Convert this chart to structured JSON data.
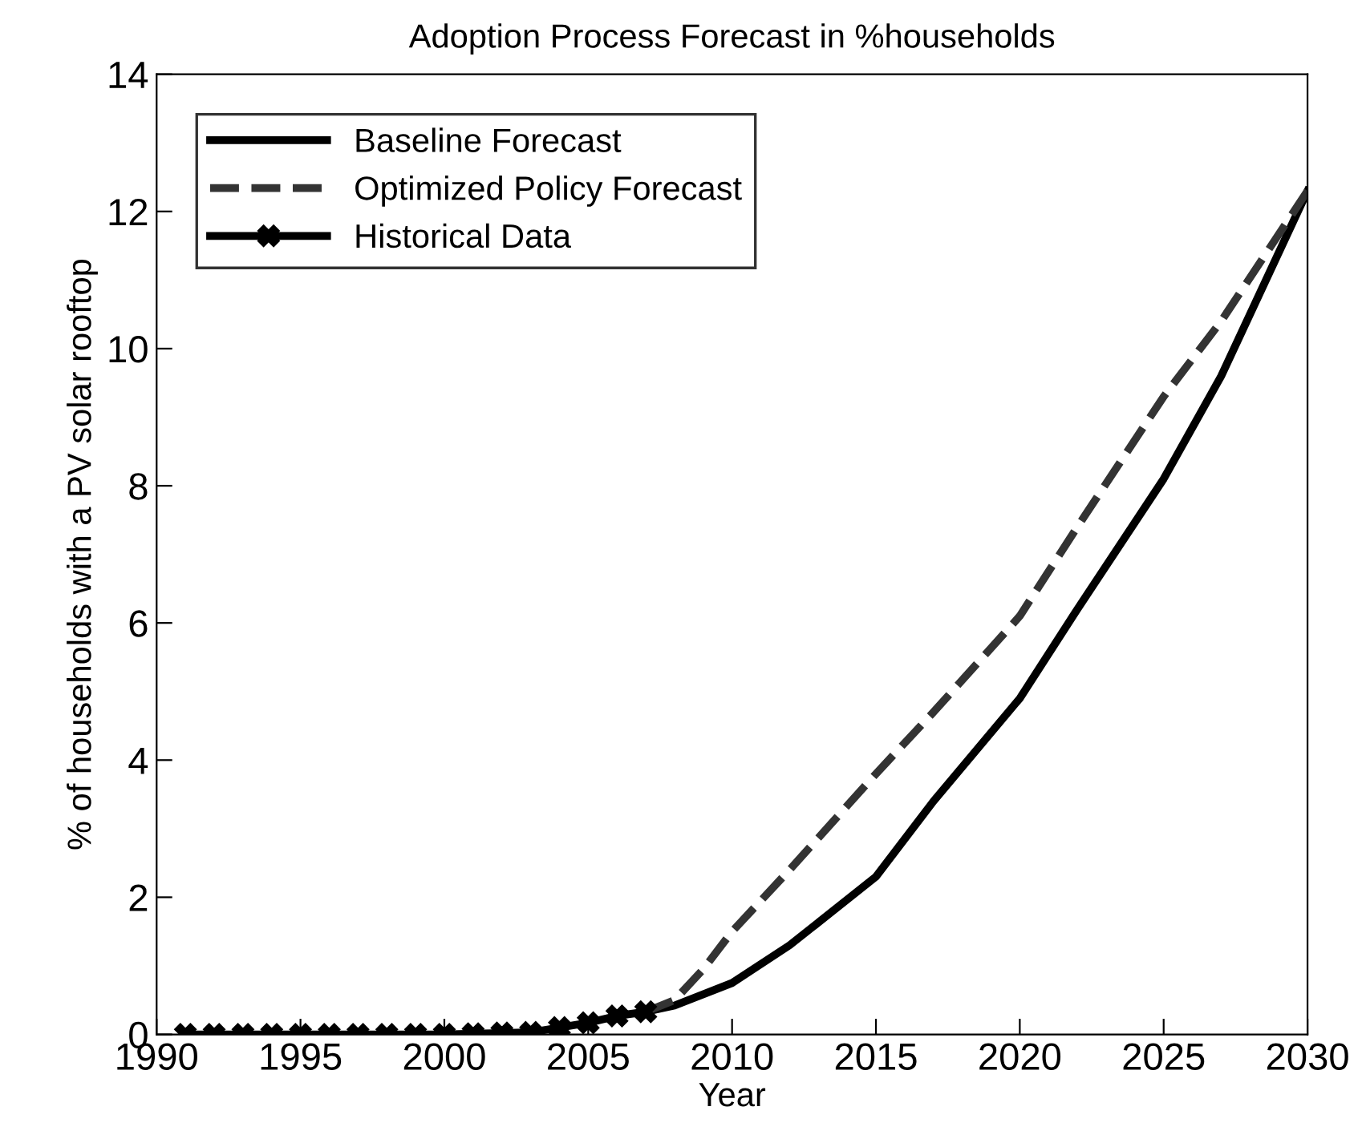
{
  "chart_data": {
    "type": "line",
    "title": "Adoption Process Forecast in %households",
    "xlabel": "Year",
    "ylabel": "% of households with a PV solar rooftop",
    "xlim": [
      1990,
      2030
    ],
    "xticks": [
      1990,
      1995,
      2000,
      2005,
      2010,
      2015,
      2020,
      2025,
      2030
    ],
    "ylim": [
      0,
      14
    ],
    "yticks": [
      0,
      2,
      4,
      6,
      8,
      10,
      12,
      14
    ],
    "grid": false,
    "legend": "top left",
    "series": [
      {
        "name": "Baseline Forecast",
        "color": "#000000",
        "line_style": "solid",
        "marker": "none",
        "x": [
          2007,
          2008,
          2010,
          2012,
          2015,
          2017,
          2020,
          2022,
          2025,
          2027,
          2030
        ],
        "values": [
          0.33,
          0.42,
          0.75,
          1.3,
          2.3,
          3.4,
          4.9,
          6.2,
          8.1,
          9.6,
          12.3
        ]
      },
      {
        "name": "Optimized Policy Forecast",
        "color": "#333333",
        "line_style": "dashed",
        "marker": "none",
        "x": [
          2007,
          2008,
          2009,
          2010,
          2012,
          2015,
          2017,
          2020,
          2022,
          2025,
          2027,
          2030
        ],
        "values": [
          0.33,
          0.5,
          0.95,
          1.5,
          2.4,
          3.8,
          4.7,
          6.1,
          7.4,
          9.3,
          10.4,
          12.3
        ]
      },
      {
        "name": "Historical Data",
        "color": "#000000",
        "line_style": "solid",
        "marker": "cross",
        "x": [
          1991,
          1992,
          1993,
          1994,
          1995,
          1996,
          1997,
          1998,
          1999,
          2000,
          2001,
          2002,
          2003,
          2004,
          2005,
          2006,
          2007
        ],
        "values": [
          0,
          0,
          0,
          0,
          0,
          0,
          0,
          0,
          0,
          0,
          0.01,
          0.02,
          0.03,
          0.1,
          0.17,
          0.27,
          0.33
        ]
      }
    ]
  }
}
